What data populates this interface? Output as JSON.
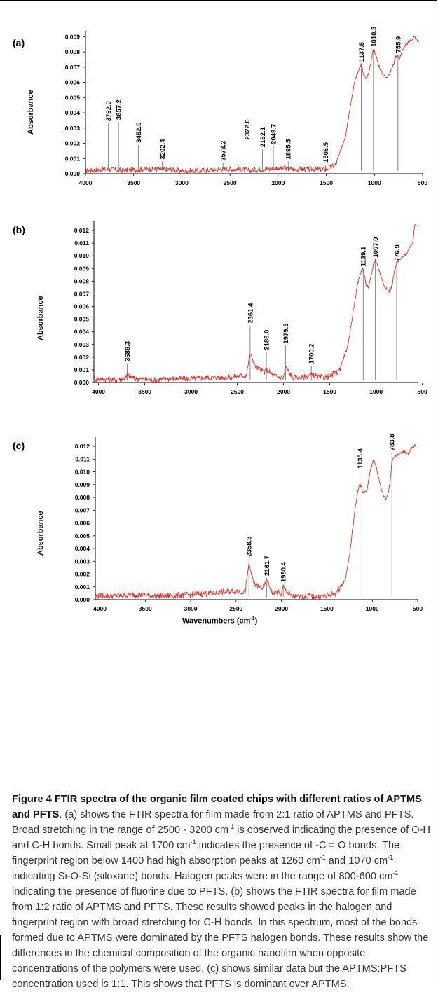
{
  "figure_caption": {
    "title": "Figure 4 FTIR spectra of the organic film coated chips with different ratios of APTMS and PFTS",
    "body": ". (a) shows the FTIR spectra for film made from 2:1 ratio of APTMS and PFTS. Broad stretching in the range of 2500 - 3200 cm",
    "sup1": "-1",
    "body2": " is observed indicating the presence of O-H and C-H bonds. Small peak at 1700 cm",
    "sup2": "-1",
    "body3": " indicates the presence of -C = O bonds. The fingerprint region below 1400 had high absorption peaks at 1260 cm",
    "sup3": "-1",
    "body4": " and 1070 cm",
    "sup4": "-1",
    "body5": " indicating Si-O-Si (siloxane) bonds. Halogen peaks were in the range of 800-600 cm",
    "sup5": "-1",
    "body6": " indicating the presence of fluorine due to PFTS. (b) shows the FTIR spectra for film made from 1:2 ratio of APTMS and PFTS. These results showed peaks in the halogen and fingerprint region with broad stretching for C-H bonds. In this spectrum, most of the bonds formed due to APTMS were dominated by the PFTS halogen bonds. These results show the differences in the chemical composition of the organic nanofilm when opposite concentrations of the polymers were used. (c) shows similar data but the APTMS:PFTS concentration used is 1:1. This shows that PFTS is dominant over APTMS."
  },
  "colors": {
    "spectrum": "#e0302a",
    "peak_marker": "#666666",
    "axis": "#000000"
  },
  "chart_data": [
    {
      "panel": "(a)",
      "type": "line",
      "ylabel": "Absorbance",
      "xlabel": "",
      "x_reversed": true,
      "xlim": [
        4000,
        500
      ],
      "ylim": [
        0,
        0.0092
      ],
      "x_ticks": [
        "4000",
        "3500",
        "3000",
        "2500",
        "2000",
        "1500",
        "1000",
        "500"
      ],
      "y_ticks": [
        "0.000",
        "0.001",
        "0.002",
        "0.003",
        "0.004",
        "0.005",
        "0.006",
        "0.007",
        "0.008",
        "0.009"
      ],
      "series": [
        {
          "x": [
            4000,
            3800,
            3600,
            3400,
            3200,
            3000,
            2800,
            2600,
            2400,
            2300,
            2200,
            2100,
            2000,
            1900,
            1800,
            1700,
            1600,
            1500,
            1400,
            1300,
            1250,
            1200,
            1160,
            1137.5,
            1110,
            1080,
            1050,
            1030,
            1010.3,
            990,
            960,
            920,
            880,
            840,
            800,
            780,
            760,
            740,
            720,
            700,
            680,
            650,
            620,
            600,
            580,
            560,
            540
          ],
          "y": [
            0.0002,
            0.0003,
            0.0002,
            0.0003,
            0.0003,
            0.0002,
            0.0002,
            0.0003,
            0.0003,
            0.0002,
            0.0003,
            0.0003,
            0.0004,
            0.0003,
            0.0003,
            0.0003,
            0.0003,
            0.0003,
            0.0006,
            0.0025,
            0.0045,
            0.0062,
            0.0069,
            0.0072,
            0.0064,
            0.0062,
            0.0068,
            0.0076,
            0.0082,
            0.0079,
            0.0072,
            0.0066,
            0.0063,
            0.0066,
            0.0072,
            0.0077,
            0.0078,
            0.0076,
            0.0079,
            0.0082,
            0.0084,
            0.0086,
            0.0088,
            0.0089,
            0.009,
            0.0088,
            0.0087
          ]
        }
      ],
      "peaks": [
        {
          "label": "3762.0",
          "x": 3762.0,
          "y": 0.0033
        },
        {
          "label": "3657.2",
          "x": 3657.2,
          "y": 0.0034
        },
        {
          "label": "3452.0",
          "x": 3452.0,
          "y": 0.0019
        },
        {
          "label": "3202.4",
          "x": 3202.4,
          "y": 0.0008
        },
        {
          "label": "2573.2",
          "x": 2573.2,
          "y": 0.0007
        },
        {
          "label": "2322.0",
          "x": 2322.0,
          "y": 0.0021
        },
        {
          "label": "2162.1",
          "x": 2162.1,
          "y": 0.0016
        },
        {
          "label": "2049.7",
          "x": 2049.7,
          "y": 0.0018
        },
        {
          "label": "1895.5",
          "x": 1895.5,
          "y": 0.0008
        },
        {
          "label": "1506.5",
          "x": 1506.5,
          "y": 0.0006
        },
        {
          "label": "1137.5",
          "x": 1137.5,
          "y": 0.0072
        },
        {
          "label": "1010.3",
          "x": 1010.3,
          "y": 0.0082
        },
        {
          "label": "755.9",
          "x": 755.9,
          "y": 0.0078
        }
      ]
    },
    {
      "panel": "(b)",
      "type": "line",
      "ylabel": "Absorbance",
      "xlabel": "",
      "x_reversed": true,
      "xlim": [
        4050,
        550
      ],
      "ylim": [
        0,
        0.0125
      ],
      "x_ticks": [
        "4000",
        "3500",
        "3000",
        "2500",
        "2000",
        "1500",
        "1000",
        "500"
      ],
      "y_ticks": [
        "0.000",
        "0.001",
        "0.002",
        "0.003",
        "0.004",
        "0.005",
        "0.006",
        "0.007",
        "0.008",
        "0.009",
        "0.010",
        "0.011",
        "0.012"
      ],
      "series": [
        {
          "x": [
            4050,
            3800,
            3700,
            3689.3,
            3600,
            3400,
            3200,
            3000,
            2800,
            2600,
            2400,
            2361.4,
            2300,
            2200,
            2186.0,
            2100,
            2000,
            1979.5,
            1900,
            1800,
            1700.2,
            1600,
            1500,
            1400,
            1300,
            1250,
            1200,
            1160,
            1139.1,
            1110,
            1080,
            1050,
            1030,
            1007.0,
            980,
            940,
            900,
            860,
            830,
            800,
            776.9,
            740,
            700,
            660,
            620,
            600,
            580,
            560
          ],
          "y": [
            0.0003,
            0.0002,
            0.0004,
            0.0006,
            0.0003,
            0.0002,
            0.0003,
            0.0003,
            0.0004,
            0.0004,
            0.0006,
            0.0023,
            0.0012,
            0.0008,
            0.001,
            0.0005,
            0.0004,
            0.0012,
            0.0004,
            0.0004,
            0.0006,
            0.0004,
            0.0005,
            0.0009,
            0.003,
            0.0055,
            0.0078,
            0.0088,
            0.009,
            0.0078,
            0.0075,
            0.0085,
            0.0093,
            0.0097,
            0.0092,
            0.0082,
            0.0075,
            0.0072,
            0.0076,
            0.0088,
            0.0094,
            0.0097,
            0.01,
            0.0103,
            0.0108,
            0.0112,
            0.0125,
            0.0124
          ]
        }
      ],
      "peaks": [
        {
          "label": "3689.3",
          "x": 3689.3,
          "y": 0.0015
        },
        {
          "label": "2361.4",
          "x": 2361.4,
          "y": 0.0045
        },
        {
          "label": "2186.0",
          "x": 2186.0,
          "y": 0.0024
        },
        {
          "label": "1979.5",
          "x": 1979.5,
          "y": 0.0029
        },
        {
          "label": "1700.2",
          "x": 1700.2,
          "y": 0.0013
        },
        {
          "label": "1139.1",
          "x": 1139.1,
          "y": 0.009
        },
        {
          "label": "1007.0",
          "x": 1007.0,
          "y": 0.0097
        },
        {
          "label": "776.9",
          "x": 776.9,
          "y": 0.0094
        }
      ]
    },
    {
      "panel": "(c)",
      "type": "line",
      "ylabel": "Absorbance",
      "xlabel": "Wavenumbers (cm-1)",
      "x_reversed": true,
      "xlim": [
        4050,
        500
      ],
      "ylim": [
        0,
        0.0125
      ],
      "x_ticks": [
        "4000",
        "3500",
        "3000",
        "2500",
        "2000",
        "1500",
        "1000",
        "500"
      ],
      "y_ticks": [
        "0.000",
        "0.001",
        "0.002",
        "0.003",
        "0.004",
        "0.005",
        "0.006",
        "0.007",
        "0.008",
        "0.009",
        "0.010",
        "0.011",
        "0.012"
      ],
      "series": [
        {
          "x": [
            4050,
            3800,
            3600,
            3400,
            3200,
            3000,
            2800,
            2600,
            2500,
            2400,
            2358.3,
            2300,
            2250,
            2200,
            2161.7,
            2100,
            2050,
            2000,
            1980.4,
            1900,
            1800,
            1700,
            1600,
            1500,
            1400,
            1300,
            1250,
            1200,
            1160,
            1135.4,
            1100,
            1060,
            1020,
            990,
            960,
            920,
            880,
            850,
            820,
            800,
            783.8,
            760,
            720,
            680,
            640,
            600,
            560,
            520
          ],
          "y": [
            0.0003,
            0.0003,
            0.0004,
            0.0003,
            0.0003,
            0.0004,
            0.0005,
            0.0006,
            0.0007,
            0.0006,
            0.0028,
            0.0012,
            0.001,
            0.0009,
            0.0016,
            0.0005,
            0.0006,
            0.0004,
            0.001,
            0.0003,
            0.0002,
            0.0003,
            0.0002,
            0.0003,
            0.0005,
            0.0015,
            0.0035,
            0.0065,
            0.0085,
            0.0091,
            0.0083,
            0.0085,
            0.0102,
            0.0109,
            0.0105,
            0.0092,
            0.0082,
            0.0079,
            0.0084,
            0.0095,
            0.0108,
            0.0112,
            0.0113,
            0.0115,
            0.0116,
            0.0114,
            0.0119,
            0.0121
          ]
        }
      ],
      "peaks": [
        {
          "label": "2358.3",
          "x": 2358.3,
          "y": 0.0032
        },
        {
          "label": "2161.7",
          "x": 2161.7,
          "y": 0.0017
        },
        {
          "label": "1980.4",
          "x": 1980.4,
          "y": 0.0012
        },
        {
          "label": "1135.4",
          "x": 1135.4,
          "y": 0.0101
        },
        {
          "label": "783.8",
          "x": 783.8,
          "y": 0.0115
        }
      ]
    }
  ]
}
